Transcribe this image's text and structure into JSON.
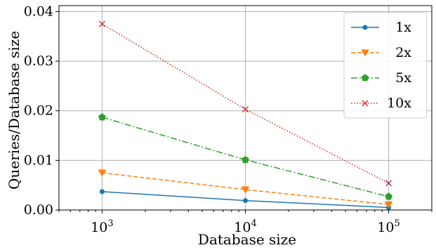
{
  "chart_data": {
    "type": "line",
    "xlabel": "Database size",
    "ylabel": "Queries/Database size",
    "x_scale": "log",
    "x": [
      1000,
      10000,
      100000
    ],
    "xlim": [
      500,
      200000
    ],
    "ylim": [
      0,
      0.0412
    ],
    "x_ticks": [
      {
        "value": 1000,
        "base": "10",
        "exp": "3"
      },
      {
        "value": 10000,
        "base": "10",
        "exp": "4"
      },
      {
        "value": 100000,
        "base": "10",
        "exp": "5"
      }
    ],
    "y_ticks": [
      {
        "value": 0.0,
        "label": "0.00"
      },
      {
        "value": 0.01,
        "label": "0.01"
      },
      {
        "value": 0.02,
        "label": "0.02"
      },
      {
        "value": 0.03,
        "label": "0.03"
      },
      {
        "value": 0.04,
        "label": "0.04"
      }
    ],
    "grid": true,
    "legend_position": "top-right",
    "series": [
      {
        "name": "1x",
        "values": [
          0.0037,
          0.0019,
          0.0005
        ],
        "color": "#1f77b4",
        "dash": "solid",
        "marker": "circle"
      },
      {
        "name": "2x",
        "values": [
          0.0075,
          0.0041,
          0.0011
        ],
        "color": "#ff7f0e",
        "dash": "dashed",
        "marker": "triangle-down"
      },
      {
        "name": "5x",
        "values": [
          0.0187,
          0.0101,
          0.0027
        ],
        "color": "#2ca02c",
        "dash": "dashdot",
        "marker": "pentagon"
      },
      {
        "name": "10x",
        "values": [
          0.0375,
          0.0203,
          0.0054
        ],
        "color": "#d62728",
        "dash": "dotted",
        "marker": "x"
      }
    ]
  }
}
